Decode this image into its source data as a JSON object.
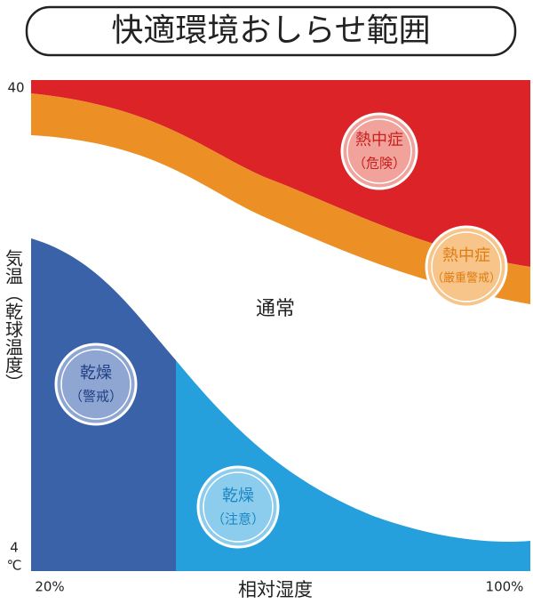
{
  "title": "快適環境おしらせ範囲",
  "y_axis": {
    "label": "気温（乾球温度）",
    "top": "40",
    "bottom": "4",
    "unit": "℃"
  },
  "x_axis": {
    "label": "相対湿度",
    "left": "20%",
    "right": "100%"
  },
  "normal": "通常",
  "zones": [
    {
      "label": "熱中症",
      "sublabel": "（危険）"
    },
    {
      "label": "熱中症",
      "sublabel": "（厳重警戒）"
    },
    {
      "label": "乾燥",
      "sublabel": "（警戒）"
    },
    {
      "label": "乾燥",
      "sublabel": "（注意）"
    }
  ]
}
